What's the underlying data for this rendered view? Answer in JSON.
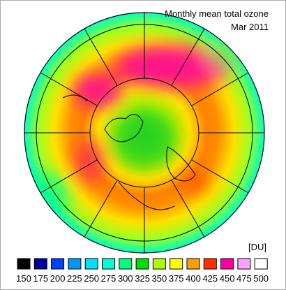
{
  "header": {
    "title": "Monthly mean total ozone",
    "subtitle": "Mar 2011"
  },
  "legend": {
    "unit": "[DU]",
    "items": [
      {
        "value": 150,
        "color": "#000000"
      },
      {
        "value": 175,
        "color": "#0000a0"
      },
      {
        "value": 200,
        "color": "#0040ff"
      },
      {
        "value": 225,
        "color": "#0096ff"
      },
      {
        "value": 250,
        "color": "#00e0ff"
      },
      {
        "value": 275,
        "color": "#00ffd0"
      },
      {
        "value": 300,
        "color": "#00ff80"
      },
      {
        "value": 325,
        "color": "#00e000"
      },
      {
        "value": 350,
        "color": "#b0ff00"
      },
      {
        "value": 375,
        "color": "#ffff00"
      },
      {
        "value": 400,
        "color": "#ffa000"
      },
      {
        "value": 425,
        "color": "#ff3000"
      },
      {
        "value": 450,
        "color": "#ff00a0"
      },
      {
        "value": 475,
        "color": "#ffa0ff"
      },
      {
        "value": 500,
        "color": "#ffffff"
      }
    ]
  }
}
